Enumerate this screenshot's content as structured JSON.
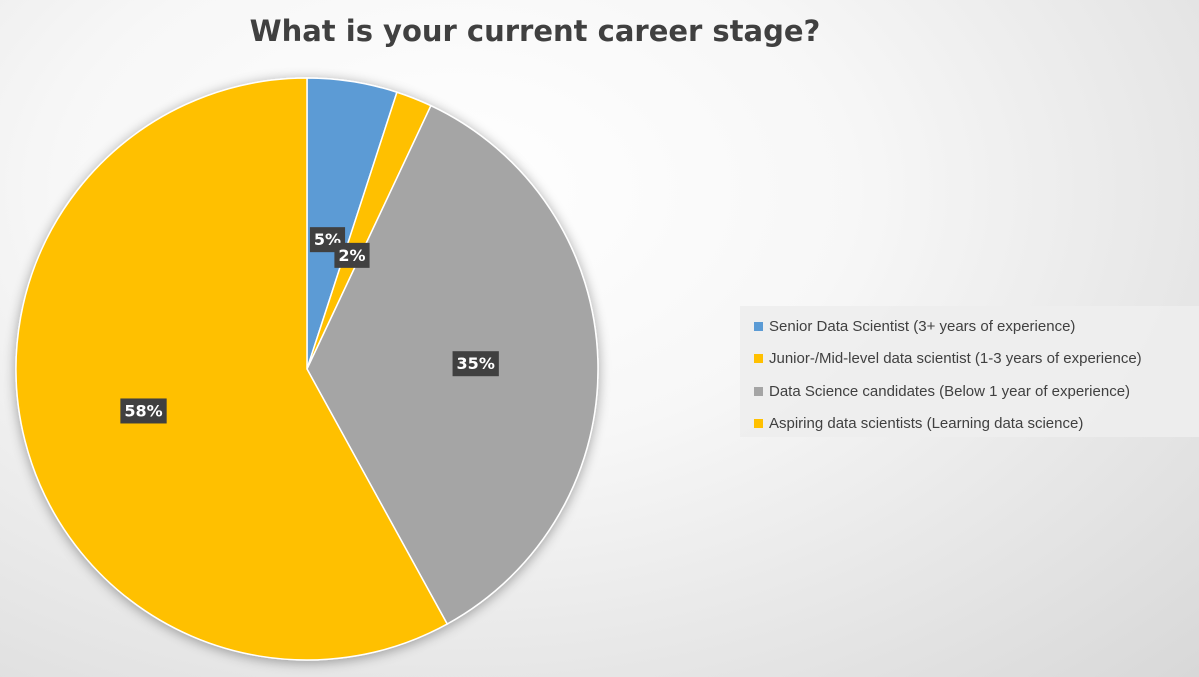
{
  "chart_data": {
    "type": "pie",
    "title": "What is your current career stage?",
    "legend_position": "right",
    "categories": [
      "Senior Data Scientist (3+ years of experience)",
      "Junior-/Mid-level data scientist (1-3 years of experience)",
      "Data Science candidates (Below 1 year of experience)",
      "Aspiring data scientists (Learning data science)"
    ],
    "values": [
      5,
      2,
      35,
      58
    ],
    "labels": [
      "5%",
      "2%",
      "35%",
      "58%"
    ],
    "colors": [
      "#5B9BD5",
      "#FFC000",
      "#A5A5A5",
      "#FFC000"
    ]
  }
}
